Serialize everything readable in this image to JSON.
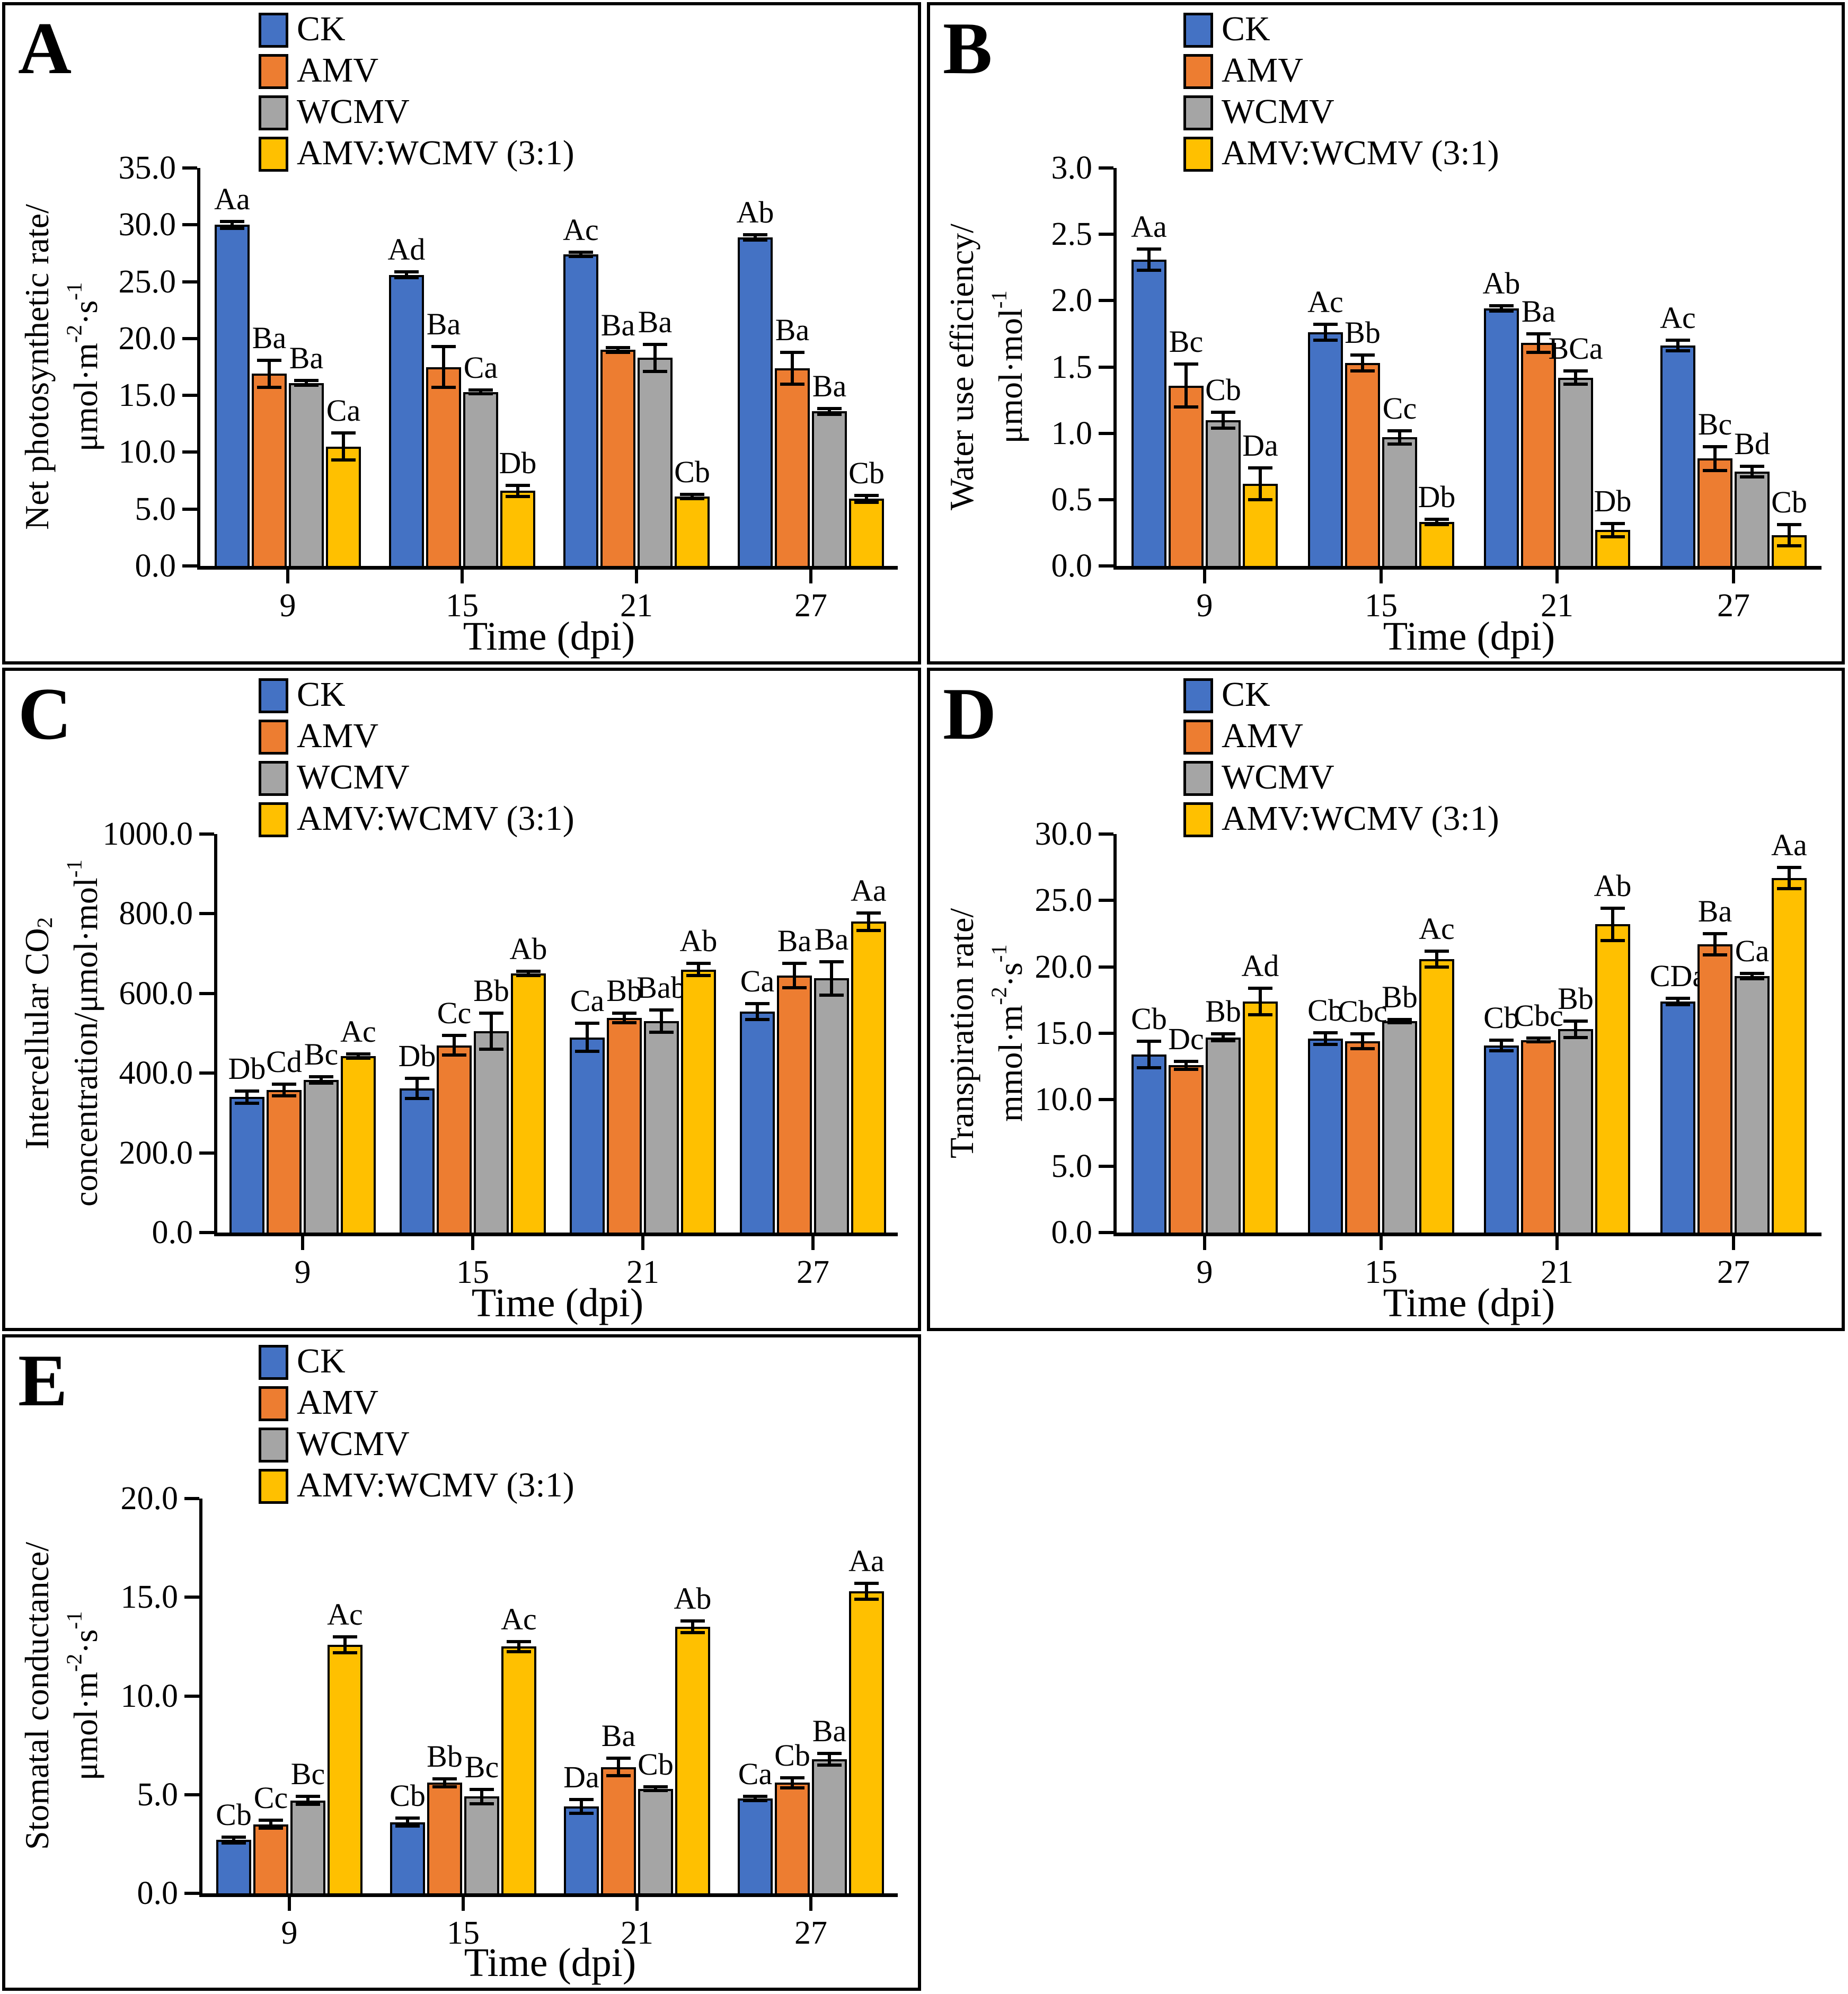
{
  "figure": {
    "background_color": "#FFFFFF",
    "border_color": "#000000",
    "xlabel": "Time (dpi)",
    "categories": [
      "9",
      "15",
      "21",
      "27"
    ]
  },
  "legend": {
    "entries": [
      {
        "label": "CK",
        "color": "#4472C4"
      },
      {
        "label": "AMV",
        "color": "#ED7D31"
      },
      {
        "label": "WCMV",
        "color": "#A5A5A5"
      },
      {
        "label": "AMV:WCMV (3:1)",
        "color": "#FFC000"
      }
    ]
  },
  "chart_data": [
    {
      "panel": "A",
      "type": "bar",
      "ylabel_lines": [
        "Net photosynthetic rate/",
        "μmol·m⁻²·s⁻¹"
      ],
      "xlabel": "Time (dpi)",
      "categories": [
        "9",
        "15",
        "21",
        "27"
      ],
      "ylim": [
        0,
        35
      ],
      "ytick_step": 5,
      "grid": false,
      "legend_position": "top-inside",
      "series": [
        {
          "name": "CK",
          "values": [
            30.0,
            25.6,
            27.4,
            28.9
          ],
          "errors": [
            0.3,
            0.25,
            0.2,
            0.25
          ],
          "sig_labels": [
            "Aa",
            "Ad",
            "Ac",
            "Ab"
          ]
        },
        {
          "name": "AMV",
          "values": [
            16.9,
            17.5,
            19.0,
            17.4
          ],
          "errors": [
            1.2,
            1.8,
            0.2,
            1.4
          ],
          "sig_labels": [
            "Ba",
            "Ba",
            "Ba",
            "Ba"
          ]
        },
        {
          "name": "WCMV",
          "values": [
            16.1,
            15.3,
            18.3,
            13.6
          ],
          "errors": [
            0.2,
            0.15,
            1.2,
            0.25
          ],
          "sig_labels": [
            "Ba",
            "Ca",
            "Ba",
            "Ba"
          ]
        },
        {
          "name": "AMV:WCMV (3:1)",
          "values": [
            10.5,
            6.6,
            6.1,
            5.9
          ],
          "errors": [
            1.2,
            0.5,
            0.2,
            0.3
          ],
          "sig_labels": [
            "Ca",
            "Db",
            "Cb",
            "Cb"
          ]
        }
      ]
    },
    {
      "panel": "B",
      "type": "bar",
      "ylabel_lines": [
        "Water use efficiency/",
        "μmol·mol⁻¹"
      ],
      "xlabel": "Time (dpi)",
      "categories": [
        "9",
        "15",
        "21",
        "27"
      ],
      "ylim": [
        0,
        3.0
      ],
      "ytick_step": 0.5,
      "grid": false,
      "legend_position": "top-inside",
      "series": [
        {
          "name": "CK",
          "values": [
            2.31,
            1.76,
            1.94,
            1.66
          ],
          "errors": [
            0.08,
            0.06,
            0.02,
            0.04
          ],
          "sig_labels": [
            "Aa",
            "Ac",
            "Ab",
            "Ac"
          ]
        },
        {
          "name": "AMV",
          "values": [
            1.36,
            1.53,
            1.68,
            0.81
          ],
          "errors": [
            0.16,
            0.06,
            0.07,
            0.09
          ],
          "sig_labels": [
            "Bc",
            "Bb",
            "Ba",
            "Bc"
          ]
        },
        {
          "name": "WCMV",
          "values": [
            1.1,
            0.97,
            1.42,
            0.71
          ],
          "errors": [
            0.06,
            0.05,
            0.05,
            0.04
          ],
          "sig_labels": [
            "Cb",
            "Cc",
            "BCa",
            "Bd"
          ]
        },
        {
          "name": "AMV:WCMV (3:1)",
          "values": [
            0.62,
            0.33,
            0.27,
            0.23
          ],
          "errors": [
            0.12,
            0.02,
            0.05,
            0.08
          ],
          "sig_labels": [
            "Da",
            "Db",
            "Db",
            "Cb"
          ]
        }
      ]
    },
    {
      "panel": "C",
      "type": "bar",
      "ylabel_lines": [
        "Intercellular CO₂",
        "concentration/μmol·mol⁻¹"
      ],
      "xlabel": "Time (dpi)",
      "categories": [
        "9",
        "15",
        "21",
        "27"
      ],
      "ylim": [
        0,
        1000
      ],
      "ytick_step": 200,
      "grid": false,
      "legend_position": "top-inside",
      "series": [
        {
          "name": "CK",
          "values": [
            340,
            362,
            490,
            555
          ],
          "errors": [
            15,
            25,
            35,
            20
          ],
          "sig_labels": [
            "Db",
            "Db",
            "Ca",
            "Ca"
          ]
        },
        {
          "name": "AMV",
          "values": [
            358,
            470,
            538,
            645
          ],
          "errors": [
            15,
            25,
            12,
            30
          ],
          "sig_labels": [
            "Cd",
            "Cc",
            "Bb",
            "Ba"
          ]
        },
        {
          "name": "WCMV",
          "values": [
            383,
            505,
            530,
            638
          ],
          "errors": [
            8,
            45,
            28,
            42
          ],
          "sig_labels": [
            "Bc",
            "Bb",
            "Bab",
            "Ba"
          ]
        },
        {
          "name": "AMV:WCMV (3:1)",
          "values": [
            443,
            650,
            660,
            780
          ],
          "errors": [
            5,
            5,
            15,
            22
          ],
          "sig_labels": [
            "Ac",
            "Ab",
            "Ab",
            "Aa"
          ]
        }
      ]
    },
    {
      "panel": "D",
      "type": "bar",
      "ylabel_lines": [
        "Transpiration rate/",
        "mmol·m⁻²·s⁻¹"
      ],
      "xlabel": "Time (dpi)",
      "categories": [
        "9",
        "15",
        "21",
        "27"
      ],
      "ylim": [
        0,
        30
      ],
      "ytick_step": 5,
      "grid": false,
      "legend_position": "top-inside",
      "series": [
        {
          "name": "CK",
          "values": [
            13.4,
            14.6,
            14.1,
            17.4
          ],
          "errors": [
            1.0,
            0.45,
            0.4,
            0.25
          ],
          "sig_labels": [
            "Cb",
            "Cb",
            "Cb",
            "CDa"
          ]
        },
        {
          "name": "AMV",
          "values": [
            12.6,
            14.4,
            14.5,
            21.7
          ],
          "errors": [
            0.3,
            0.55,
            0.15,
            0.8
          ],
          "sig_labels": [
            "Dc",
            "Cbc",
            "Cbc",
            "Ba"
          ]
        },
        {
          "name": "WCMV",
          "values": [
            14.7,
            15.9,
            15.3,
            19.3
          ],
          "errors": [
            0.25,
            0.12,
            0.6,
            0.2
          ],
          "sig_labels": [
            "Bb",
            "Bb",
            "Bb",
            "Ca"
          ]
        },
        {
          "name": "AMV:WCMV (3:1)",
          "values": [
            17.4,
            20.6,
            23.2,
            26.7
          ],
          "errors": [
            1.0,
            0.6,
            1.2,
            0.8
          ],
          "sig_labels": [
            "Ad",
            "Ac",
            "Ab",
            "Aa"
          ]
        }
      ]
    },
    {
      "panel": "E",
      "type": "bar",
      "ylabel_lines": [
        "Stomatal conductance/",
        "μmol·m⁻²·s⁻¹"
      ],
      "xlabel": "Time (dpi)",
      "categories": [
        "9",
        "15",
        "21",
        "27"
      ],
      "ylim": [
        0,
        20
      ],
      "ytick_step": 5,
      "grid": false,
      "legend_position": "top-inside",
      "series": [
        {
          "name": "CK",
          "values": [
            2.7,
            3.6,
            4.4,
            4.8
          ],
          "errors": [
            0.15,
            0.2,
            0.35,
            0.1
          ],
          "sig_labels": [
            "Cb",
            "Cb",
            "Da",
            "Ca"
          ]
        },
        {
          "name": "AMV",
          "values": [
            3.5,
            5.6,
            6.4,
            5.6
          ],
          "errors": [
            0.2,
            0.2,
            0.45,
            0.25
          ],
          "sig_labels": [
            "Cc",
            "Bb",
            "Ba",
            "Cb"
          ]
        },
        {
          "name": "WCMV",
          "values": [
            4.7,
            4.9,
            5.3,
            6.8
          ],
          "errors": [
            0.2,
            0.35,
            0.1,
            0.3
          ],
          "sig_labels": [
            "Bc",
            "Bc",
            "Cb",
            "Ba"
          ]
        },
        {
          "name": "AMV:WCMV (3:1)",
          "values": [
            12.6,
            12.5,
            13.5,
            15.3
          ],
          "errors": [
            0.4,
            0.25,
            0.3,
            0.4
          ],
          "sig_labels": [
            "Ac",
            "Ac",
            "Ab",
            "Aa"
          ]
        }
      ]
    }
  ]
}
